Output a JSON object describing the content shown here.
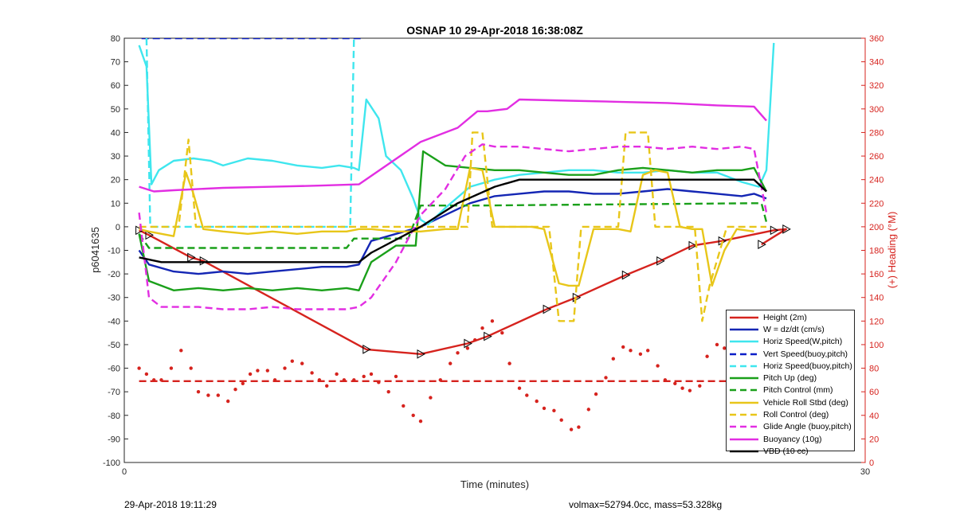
{
  "title": "OSNAP 10 29-Apr-2018 16:38:08Z",
  "footer": {
    "left": "29-Apr-2018 19:11:29",
    "right": "volmax=52794.0cc, mass=53.328kg"
  },
  "colors": {
    "red": "#d6231e",
    "blue": "#1426b4",
    "cyan": "#3fe6ee",
    "navy": "#0a1ec8",
    "green": "#1aa01a",
    "yellow": "#e8c619",
    "magenta": "#e22ee2",
    "black": "#000000",
    "axis_right": "#d6231e"
  },
  "chart_data": {
    "type": "line",
    "xlabel": "Time (minutes)",
    "ylabel": "p6041635",
    "y2label": "(+) Heading (°M)",
    "xlim": [
      0,
      30
    ],
    "ylim": [
      -100,
      80
    ],
    "y2lim": [
      0,
      360
    ],
    "xticks": [
      "0",
      "30"
    ],
    "yticks": [
      "80",
      "70",
      "60",
      "50",
      "40",
      "30",
      "20",
      "10",
      "0",
      "-10",
      "-20",
      "-30",
      "-40",
      "-50",
      "-60",
      "-70",
      "-80",
      "-90",
      "-100"
    ],
    "y2ticks": [
      "360",
      "340",
      "320",
      "300",
      "280",
      "260",
      "240",
      "220",
      "200",
      "180",
      "160",
      "140",
      "120",
      "100",
      "80",
      "60",
      "40",
      "20",
      "0"
    ],
    "legend_position": "bottom-right",
    "series": [
      {
        "name": "Height (2m)",
        "style": "solid",
        "color": "red",
        "markers": "triangle",
        "x": [
          0.6,
          1.0,
          2.7,
          3.2,
          9.8,
          12.0,
          13.9,
          14.7,
          17.1,
          18.3,
          20.3,
          21.7,
          23.0,
          24.2,
          26.3,
          26.8,
          25.8
        ],
        "y": [
          -1.5,
          -3.5,
          -13.0,
          -14.5,
          -52.0,
          -54.0,
          -49.5,
          -46.5,
          -35.0,
          -30.0,
          -20.5,
          -14.5,
          -8.0,
          -6.0,
          -1.5,
          -1.0,
          -7.5
        ]
      },
      {
        "name": "W = dz/dt (cm/s)",
        "style": "solid",
        "color": "blue",
        "x": [
          0.6,
          1.0,
          2.0,
          3.0,
          4.0,
          5.0,
          6.0,
          7.0,
          8.0,
          9.0,
          9.5,
          10.0,
          11.0,
          12.0,
          13.0,
          14.0,
          15.0,
          16.0,
          17.0,
          18.0,
          19.0,
          20.0,
          21.0,
          22.0,
          23.0,
          24.0,
          25.0,
          25.5,
          26.0
        ],
        "y": [
          -10,
          -16,
          -19,
          -20,
          -19,
          -20,
          -19,
          -18,
          -17,
          -17,
          -16,
          -6,
          -3,
          0,
          5,
          10,
          13,
          14,
          15,
          15,
          14,
          14,
          15,
          16,
          15,
          14,
          13,
          14,
          12
        ]
      },
      {
        "name": "Horiz Speed(W,pitch)",
        "style": "solid",
        "color": "cyan",
        "x": [
          0.6,
          0.9,
          1.1,
          1.4,
          2.0,
          2.8,
          3.5,
          4.0,
          5.0,
          6.0,
          7.0,
          8.0,
          8.7,
          9.3,
          9.5,
          9.8,
          10.3,
          10.6,
          11.2,
          11.7,
          12.0,
          12.3,
          13.0,
          14.0,
          15.0,
          16.0,
          17.0,
          18.0,
          19.0,
          20.0,
          21.0,
          22.0,
          23.0,
          24.0,
          25.0,
          25.7,
          26.0,
          26.3
        ],
        "y": [
          77,
          68,
          18,
          24,
          28,
          29,
          28,
          26,
          29,
          28,
          26,
          25,
          26,
          25,
          24,
          54,
          46,
          30,
          24,
          12,
          3,
          1,
          8,
          17,
          20,
          22,
          23,
          24,
          24,
          23,
          23,
          24,
          23,
          23,
          19,
          17,
          24,
          78
        ]
      },
      {
        "name": "Vert Speed(buoy,pitch)",
        "style": "dashed",
        "color": "navy",
        "x": [
          0.7,
          0.85,
          9.5,
          9.65
        ],
        "y": [
          80,
          80,
          80,
          80
        ]
      },
      {
        "name": "Horiz Speed(buoy,pitch)",
        "style": "dashed",
        "color": "cyan",
        "x": [
          0.9,
          1.05,
          1.15,
          9.0,
          9.15,
          9.3
        ],
        "y": [
          80,
          0,
          0,
          0,
          0,
          80
        ]
      },
      {
        "name": "Pitch Up (deg)",
        "style": "solid",
        "color": "green",
        "x": [
          0.6,
          1.0,
          2.0,
          3.0,
          4.0,
          5.0,
          6.0,
          7.0,
          8.0,
          9.0,
          9.5,
          10.0,
          11.0,
          11.8,
          12.1,
          13.0,
          14.0,
          15.0,
          16.0,
          17.0,
          18.0,
          19.0,
          20.0,
          21.0,
          22.0,
          23.0,
          24.0,
          25.0,
          25.5,
          26.0
        ],
        "y": [
          -3,
          -23,
          -27,
          -26,
          -27,
          -26,
          -27,
          -26,
          -27,
          -26,
          -27,
          -15,
          -8,
          -8,
          32,
          26,
          25,
          24,
          24,
          23,
          22,
          22,
          24,
          25,
          24,
          23,
          24,
          24,
          25,
          15
        ]
      },
      {
        "name": "Pitch Control (mm)",
        "style": "dashed",
        "color": "green",
        "x": [
          0.6,
          1.0,
          1.6,
          9.0,
          9.3,
          11.5,
          12.0,
          14.0,
          14.3,
          25.5,
          25.8,
          26.0
        ],
        "y": [
          -3,
          -9,
          -9,
          -9,
          -5,
          -5,
          9,
          9,
          9,
          10,
          10,
          2
        ]
      },
      {
        "name": "Vehicle Roll Stbd (deg)",
        "style": "solid",
        "color": "yellow",
        "x": [
          0.6,
          1.0,
          2.0,
          2.5,
          2.8,
          3.2,
          4.0,
          5.0,
          6.0,
          7.0,
          8.0,
          9.0,
          9.5,
          10.0,
          11.0,
          12.0,
          13.0,
          13.5,
          14.0,
          14.5,
          15.0,
          16.0,
          16.5,
          17.0,
          17.6,
          18.0,
          18.4,
          19.0,
          20.0,
          20.5,
          21.0,
          21.5,
          22.0,
          22.5,
          23.0,
          23.4,
          23.8,
          24.3,
          24.8,
          25.5
        ],
        "y": [
          -1,
          -2,
          -4,
          23,
          14,
          -1,
          -2,
          -3,
          -2,
          -3,
          -2,
          -2,
          -1,
          -1,
          -2,
          -2,
          -1,
          -1,
          25,
          24,
          0,
          0,
          0,
          -1,
          -24,
          -25,
          -25,
          -1,
          -1,
          -2,
          22,
          24,
          23,
          0,
          -1,
          -1,
          -25,
          -10,
          -1,
          -2
        ]
      },
      {
        "name": "Roll Control (deg)",
        "style": "dashed",
        "color": "yellow",
        "x": [
          0.6,
          1.0,
          2.2,
          2.6,
          2.9,
          9.0,
          10.0,
          13.5,
          13.9,
          14.1,
          14.5,
          14.9,
          17.2,
          17.6,
          18.2,
          18.5,
          20.0,
          20.3,
          21.2,
          21.5,
          23.1,
          23.4,
          23.7,
          24.4,
          25.0,
          26.0
        ],
        "y": [
          0,
          0,
          0,
          37,
          0,
          0,
          0,
          0,
          0,
          40,
          40,
          0,
          0,
          -40,
          -40,
          0,
          0,
          40,
          40,
          0,
          0,
          -40,
          -25,
          0,
          0,
          0
        ]
      },
      {
        "name": "Glide Angle (buoy,pitch)",
        "style": "dashed",
        "color": "magenta",
        "x": [
          0.6,
          1.0,
          1.5,
          2.0,
          3.0,
          4.0,
          5.0,
          6.0,
          7.0,
          8.0,
          9.0,
          9.5,
          10.0,
          11.0,
          12.0,
          13.0,
          13.8,
          14.5,
          15.0,
          16.0,
          17.0,
          18.0,
          19.0,
          20.0,
          21.0,
          22.0,
          23.0,
          24.0,
          25.0,
          25.5,
          26.0
        ],
        "y": [
          6,
          -30,
          -34,
          -34,
          -34,
          -35,
          -35,
          -34,
          -35,
          -35,
          -35,
          -34,
          -30,
          -15,
          5,
          16,
          30,
          35,
          34,
          34,
          33,
          32,
          33,
          34,
          34,
          33,
          34,
          33,
          34,
          33,
          6
        ]
      },
      {
        "name": "Buoyancy (10g)",
        "style": "solid",
        "color": "magenta",
        "x": [
          0.6,
          1.2,
          2.0,
          4.0,
          6.0,
          8.0,
          9.5,
          12.0,
          13.5,
          14.3,
          14.7,
          15.5,
          16.0,
          18.0,
          20.0,
          22.0,
          24.0,
          25.5,
          26.0
        ],
        "y": [
          17,
          15,
          15.5,
          16.5,
          17,
          17.5,
          18,
          36,
          42,
          49,
          49,
          50,
          54,
          53.5,
          53,
          52.5,
          51.5,
          51,
          45
        ]
      },
      {
        "name": "VBD (10 cc)",
        "style": "solid",
        "color": "black",
        "x": [
          0.6,
          1.5,
          2.5,
          5.0,
          8.0,
          9.5,
          10.0,
          12.0,
          13.5,
          15.0,
          16.0,
          18.0,
          20.0,
          22.0,
          24.0,
          25.5,
          26.0
        ],
        "y": [
          -13,
          -15,
          -15,
          -15,
          -15,
          -15,
          -11,
          0,
          10,
          17,
          20,
          20,
          20,
          20,
          20,
          20,
          15
        ]
      },
      {
        "name": "",
        "style": "dashed",
        "color": "red",
        "axis": "right",
        "x": [
          0.6,
          26.0
        ],
        "y": [
          69,
          69
        ]
      },
      {
        "name": "",
        "style": "dotted",
        "color": "red",
        "axis": "right",
        "x": [
          0.6,
          0.9,
          1.2,
          1.5,
          1.9,
          2.3,
          2.7,
          3.0,
          3.4,
          3.8,
          4.2,
          4.5,
          4.8,
          5.1,
          5.4,
          5.8,
          6.1,
          6.5,
          6.8,
          7.2,
          7.6,
          7.9,
          8.2,
          8.6,
          8.9,
          9.3,
          9.7,
          10.0,
          10.3,
          10.7,
          11.0,
          11.3,
          11.7,
          12.0,
          12.4,
          12.8,
          13.2,
          13.5,
          13.9,
          14.2,
          14.5,
          14.9,
          15.3,
          15.6,
          16.0,
          16.3,
          16.7,
          17.0,
          17.4,
          17.7,
          18.1,
          18.4,
          18.8,
          19.1,
          19.5,
          19.8,
          20.2,
          20.5,
          20.9,
          21.2,
          21.6,
          21.9,
          22.3,
          22.6,
          22.9,
          23.3,
          23.6,
          24.0,
          24.3,
          24.6,
          25.0,
          25.3,
          25.7,
          26.0
        ],
        "y": [
          80,
          75,
          70,
          70,
          80,
          95,
          80,
          60,
          57,
          57,
          52,
          62,
          67,
          75,
          78,
          78,
          70,
          80,
          86,
          84,
          76,
          70,
          65,
          75,
          70,
          70,
          73,
          75,
          68,
          60,
          73,
          48,
          40,
          35,
          55,
          70,
          84,
          93,
          97,
          104,
          114,
          120,
          110,
          84,
          63,
          57,
          52,
          46,
          44,
          36,
          28,
          30,
          45,
          58,
          72,
          88,
          98,
          95,
          92,
          95,
          82,
          70,
          67,
          63,
          61,
          65,
          90,
          100,
          97,
          95,
          90,
          80,
          70,
          75
        ]
      }
    ]
  }
}
